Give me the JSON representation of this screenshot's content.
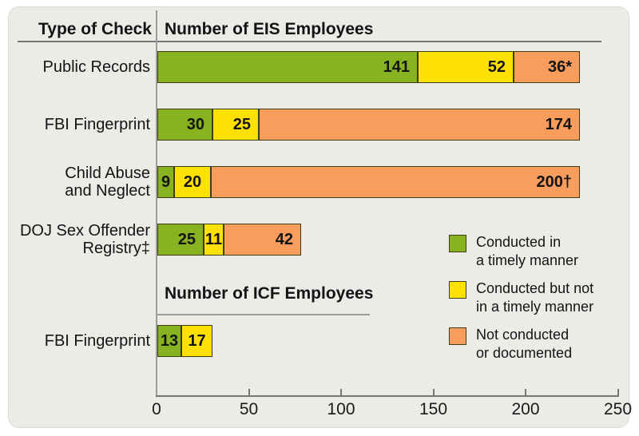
{
  "chart_data": {
    "type": "bar",
    "orientation": "horizontal",
    "stacked": true,
    "title_column": "Type of Check",
    "sections": [
      {
        "header": "Number of EIS Employees",
        "rows": [
          {
            "category": "Public Records",
            "values": [
              141,
              52,
              36
            ],
            "labels": [
              "141",
              "52",
              "36*"
            ]
          },
          {
            "category": "FBI Fingerprint",
            "values": [
              30,
              25,
              174
            ],
            "labels": [
              "30",
              "25",
              "174"
            ]
          },
          {
            "category": "Child Abuse\nand Neglect",
            "values": [
              9,
              20,
              200
            ],
            "labels": [
              "9",
              "20",
              "200†"
            ]
          },
          {
            "category": "DOJ Sex Offender\nRegistry‡",
            "values": [
              25,
              11,
              42
            ],
            "labels": [
              "25",
              "11",
              "42"
            ]
          }
        ]
      },
      {
        "header": "Number of ICF Employees",
        "rows": [
          {
            "category": "FBI Fingerprint",
            "values": [
              13,
              17
            ],
            "labels": [
              "13",
              "17"
            ]
          }
        ]
      }
    ],
    "series": [
      {
        "name": "Conducted in\na timely manner",
        "color": "#87B222"
      },
      {
        "name": "Conducted but not\nin a timely manner",
        "color": "#FFE003"
      },
      {
        "name": "Not conducted\nor documented",
        "color": "#F99D5E"
      }
    ],
    "x_axis": {
      "ticks": [
        0,
        50,
        100,
        150,
        200,
        250
      ],
      "max": 250
    },
    "colors": {
      "panel_background": "#ECEBE8",
      "grid_lines": "#767676",
      "divider": "#9B9B9B",
      "text": "#141414",
      "bar_border": "#3C3C10"
    },
    "legend_position": "bottom-right",
    "grid": false
  }
}
